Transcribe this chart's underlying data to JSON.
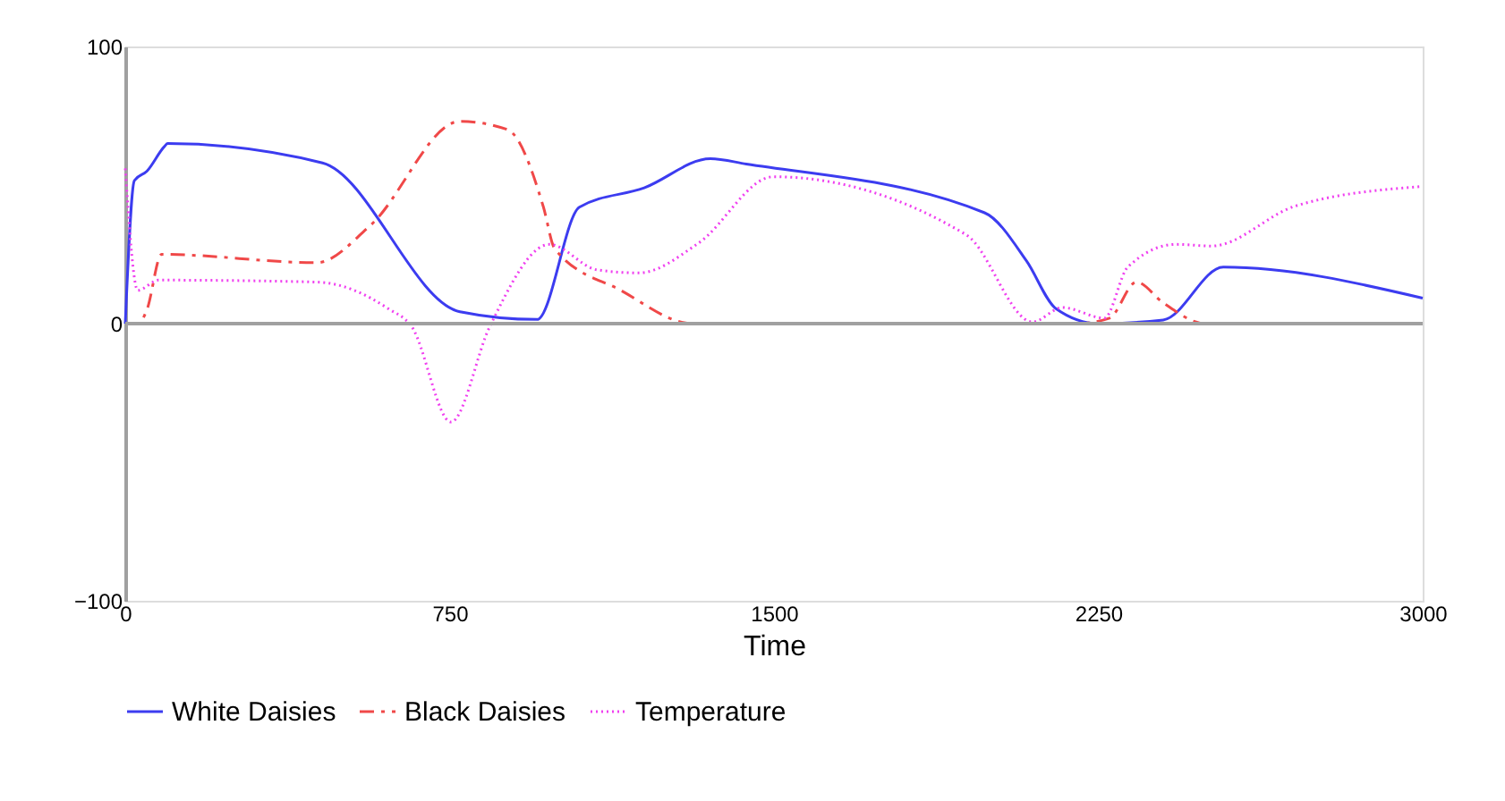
{
  "chart_data": {
    "type": "line",
    "xlabel": "Time",
    "xlim": [
      0,
      3000
    ],
    "xticks": [
      0,
      750,
      1500,
      2250,
      3000
    ],
    "ylim": [
      -100,
      100
    ],
    "yticks": [
      -100,
      0,
      100
    ],
    "grid": false,
    "legend": "bottom",
    "marker": "none",
    "ref_lines": [
      {
        "axis": "y",
        "value": 0,
        "color": "#a0a0a0"
      }
    ],
    "series": [
      {
        "name": "White Daisies",
        "color": "#3c3cf0",
        "line_style": "solid",
        "x": [
          0,
          21,
          50,
          91,
          98,
          456,
          774,
          952,
          1050,
          1200,
          1353,
          1436,
          1987,
          2084,
          2152,
          2250,
          2400,
          2539,
          3000
        ],
        "values": [
          0,
          51.6,
          55,
          64,
          65,
          58,
          4.3,
          1.5,
          42,
          49,
          59.5,
          57.6,
          40,
          22.6,
          5.4,
          0,
          1.3,
          20.4,
          9.2
        ]
      },
      {
        "name": "Black Daisies",
        "color": "#f04848",
        "line_style": "dashed",
        "x": [
          0,
          30,
          50,
          84,
          443,
          567,
          774,
          884,
          967,
          993,
          1146,
          1312,
          2200,
          2276,
          2338,
          2400,
          2498,
          3000
        ],
        "values": [
          0,
          0,
          5,
          25,
          22,
          35.5,
          73,
          70,
          42,
          27,
          12,
          0,
          0,
          2,
          15,
          7.5,
          0,
          0
        ]
      },
      {
        "name": "Temperature",
        "color": "#f040f0",
        "line_style": "dotted",
        "x": [
          0,
          29,
          77,
          443,
          608,
          662,
          753,
          843,
          981,
          1091,
          1188,
          1325,
          1498,
          1945,
          2098,
          2167,
          2264,
          2318,
          2429,
          2512,
          2705,
          3000
        ],
        "values": [
          56,
          12,
          15.7,
          15,
          5.4,
          -1,
          -35.5,
          -1,
          28.6,
          19.4,
          18.3,
          29,
          53,
          32,
          0.6,
          5.8,
          2,
          20.4,
          28.6,
          28,
          42.4,
          49.5
        ]
      }
    ]
  }
}
